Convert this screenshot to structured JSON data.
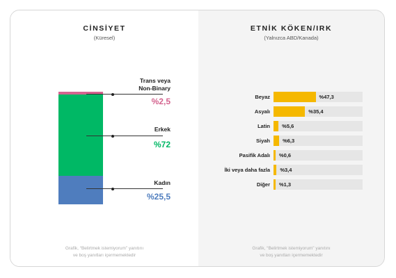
{
  "colors": {
    "trans": "#d4648f",
    "erkek": "#00b865",
    "kadin": "#4f7dbe",
    "bar": "#f5b800",
    "track": "#e6e6e6"
  },
  "left_panel": {
    "title": "CİNSİYET",
    "subtitle": "(Küresel)",
    "footnote_line1": "Grafik, “Belirtmek istemiyorum” yanıtını",
    "footnote_line2": "ve boş yanıtları içermemektedir"
  },
  "right_panel": {
    "title": "ETNİK KÖKEN/IRK",
    "subtitle": "(Yalnızca ABD/Kanada)",
    "footnote_line1": "Grafik, “Belirtmek istemiyorum” yanıtını",
    "footnote_line2": "ve boş yanıtları içermemektedir"
  },
  "chart_data": [
    {
      "type": "bar",
      "stacked": true,
      "title": "CİNSİYET",
      "subtitle": "(Küresel)",
      "series": [
        {
          "name": "Trans veya Non-Binary",
          "label_line1": "Trans veya",
          "label_line2": "Non-Binary",
          "value": 2.5,
          "display": "%2,5",
          "color": "#d4648f"
        },
        {
          "name": "Erkek",
          "label_line1": "Erkek",
          "value": 72,
          "display": "%72",
          "color": "#00b865"
        },
        {
          "name": "Kadın",
          "label_line1": "Kadın",
          "value": 25.5,
          "display": "%25,5",
          "color": "#4f7dbe"
        }
      ]
    },
    {
      "type": "bar",
      "orientation": "horizontal",
      "title": "ETNİK KÖKEN/IRK",
      "subtitle": "(Yalnızca ABD/Kanada)",
      "xlim": [
        0,
        100
      ],
      "categories": [
        "Beyaz",
        "Asyalı",
        "Latin",
        "Siyah",
        "Pasifik Adalı",
        "İki veya daha fazla",
        "Diğer"
      ],
      "values": [
        47.3,
        35.4,
        5.6,
        6.3,
        0.6,
        3.4,
        1.3
      ],
      "labels": [
        "%47,3",
        "%35,4",
        "%5,6",
        "%6,3",
        "%0,6",
        "%3,4",
        "%1,3"
      ],
      "color": "#f5b800"
    }
  ]
}
